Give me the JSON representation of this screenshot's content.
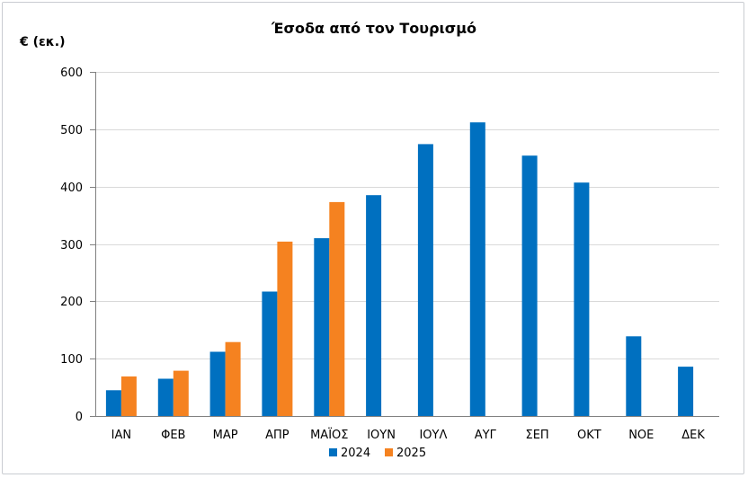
{
  "chart_data": {
    "type": "bar",
    "title": "Έσοδα από τον Τουρισμό",
    "ylabel": "€ (εκ.)",
    "xlabel": "",
    "categories": [
      "ΙΑΝ",
      "ΦΕΒ",
      "ΜΑΡ",
      "ΑΠΡ",
      "ΜΑΪΟΣ",
      "ΙΟΥΝ",
      "ΙΟΥΛ",
      "ΑΥΓ",
      "ΣΕΠ",
      "ΟΚΤ",
      "ΝΟΕ",
      "ΔΕΚ"
    ],
    "series": [
      {
        "name": "2024",
        "color": "#0070C0",
        "values": [
          45,
          65,
          112,
          217,
          310,
          385,
          474,
          512,
          454,
          407,
          139,
          86
        ]
      },
      {
        "name": "2025",
        "color": "#F58220",
        "values": [
          69,
          79,
          129,
          304,
          373,
          null,
          null,
          null,
          null,
          null,
          null,
          null
        ]
      }
    ],
    "ylim": [
      0,
      600
    ],
    "yticks": [
      0,
      100,
      200,
      300,
      400,
      500,
      600
    ],
    "grid": true,
    "legend": "bottom"
  }
}
